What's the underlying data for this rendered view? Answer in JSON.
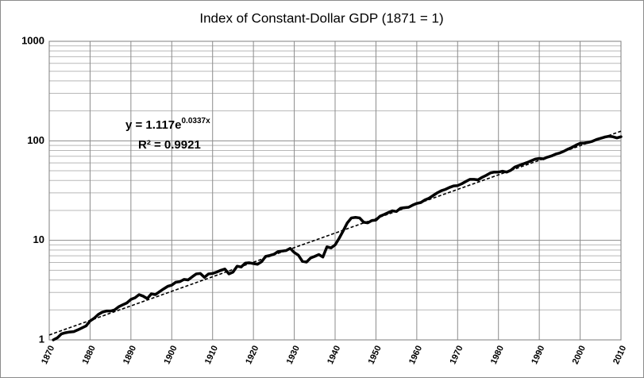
{
  "chart_data": {
    "type": "line",
    "title": "Index of Constant-Dollar  GDP  (1871 = 1)",
    "x": [
      1871,
      1872,
      1873,
      1874,
      1875,
      1876,
      1877,
      1878,
      1879,
      1880,
      1881,
      1882,
      1883,
      1884,
      1885,
      1886,
      1887,
      1888,
      1889,
      1890,
      1891,
      1892,
      1893,
      1894,
      1895,
      1896,
      1897,
      1898,
      1899,
      1900,
      1901,
      1902,
      1903,
      1904,
      1905,
      1906,
      1907,
      1908,
      1909,
      1910,
      1911,
      1912,
      1913,
      1914,
      1915,
      1916,
      1917,
      1918,
      1919,
      1920,
      1921,
      1922,
      1923,
      1924,
      1925,
      1926,
      1927,
      1928,
      1929,
      1930,
      1931,
      1932,
      1933,
      1934,
      1935,
      1936,
      1937,
      1938,
      1939,
      1940,
      1941,
      1942,
      1943,
      1944,
      1945,
      1946,
      1947,
      1948,
      1949,
      1950,
      1951,
      1952,
      1953,
      1954,
      1955,
      1956,
      1957,
      1958,
      1959,
      1960,
      1961,
      1962,
      1963,
      1964,
      1965,
      1966,
      1967,
      1968,
      1969,
      1970,
      1971,
      1972,
      1973,
      1974,
      1975,
      1976,
      1977,
      1978,
      1979,
      1980,
      1981,
      1982,
      1983,
      1984,
      1985,
      1986,
      1987,
      1988,
      1989,
      1990,
      1991,
      1992,
      1993,
      1994,
      1995,
      1996,
      1997,
      1998,
      1999,
      2000,
      2001,
      2002,
      2003,
      2004,
      2005,
      2006,
      2007,
      2008,
      2009,
      2010
    ],
    "values": [
      1.0,
      1.05,
      1.15,
      1.18,
      1.2,
      1.21,
      1.26,
      1.32,
      1.38,
      1.55,
      1.65,
      1.8,
      1.9,
      1.95,
      1.95,
      2.0,
      2.15,
      2.25,
      2.35,
      2.55,
      2.65,
      2.85,
      2.75,
      2.6,
      2.9,
      2.85,
      3.05,
      3.25,
      3.45,
      3.55,
      3.8,
      3.85,
      4.05,
      4.0,
      4.3,
      4.6,
      4.65,
      4.25,
      4.6,
      4.65,
      4.8,
      5.0,
      5.15,
      4.6,
      4.8,
      5.5,
      5.4,
      5.9,
      5.95,
      5.85,
      5.75,
      6.1,
      6.9,
      7.05,
      7.25,
      7.7,
      7.8,
      7.9,
      8.3,
      7.55,
      7.1,
      6.15,
      6.05,
      6.65,
      6.9,
      7.2,
      6.8,
      8.6,
      8.4,
      9.0,
      10.5,
      12.5,
      15.0,
      16.8,
      17.0,
      16.8,
      15.2,
      15.0,
      15.8,
      16.0,
      17.5,
      18.2,
      19.0,
      19.8,
      19.5,
      21.0,
      21.3,
      21.5,
      22.6,
      23.5,
      24.0,
      25.5,
      26.5,
      28.2,
      30.0,
      31.5,
      32.5,
      34.0,
      35.2,
      35.5,
      37.0,
      39.0,
      41.0,
      41.0,
      40.5,
      43.0,
      45.0,
      47.5,
      48.5,
      48.5,
      49.5,
      48.5,
      50.5,
      54.5,
      56.5,
      58.5,
      60.5,
      63.0,
      65.5,
      66.5,
      66.0,
      68.5,
      70.5,
      73.5,
      75.5,
      78.5,
      82.5,
      86.0,
      90.5,
      94.5,
      95.0,
      96.5,
      99.0,
      103,
      106,
      109,
      111,
      110,
      107,
      110
    ],
    "color": "#000000",
    "trendline": {
      "x": [
        1870,
        2010
      ],
      "values": [
        1.12,
        125
      ],
      "color": "#000000"
    },
    "equation": "y = 1.117e",
    "equation_exponent": "0.0337x",
    "r_squared": "R² = 0.9921",
    "xlim": [
      1870,
      2010
    ],
    "xticks": [
      1870,
      1880,
      1890,
      1900,
      1910,
      1920,
      1930,
      1940,
      1950,
      1960,
      1970,
      1980,
      1990,
      2000,
      2010
    ],
    "ylim": [
      1,
      1000
    ],
    "yticks": [
      1,
      10,
      100,
      1000
    ],
    "y_minor_ticks": [
      2,
      3,
      4,
      5,
      6,
      7,
      8,
      9,
      20,
      30,
      40,
      50,
      60,
      70,
      80,
      90,
      200,
      300,
      400,
      500,
      600,
      700,
      800,
      900
    ],
    "log_scale": true,
    "grid": true
  }
}
